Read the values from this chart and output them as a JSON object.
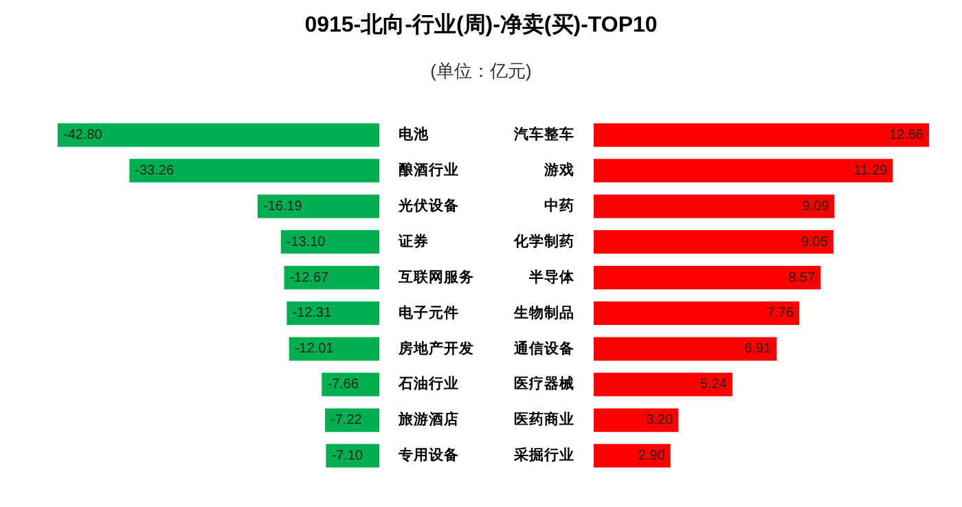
{
  "chart_data": [
    {
      "type": "bar",
      "title": "0915-北向-行业(周)-净卖(买)-TOP10",
      "subtitle": "(单位：亿元)",
      "orientation": "horizontal",
      "categories": [
        "电池",
        "酿酒行业",
        "光伏设备",
        "证券",
        "互联网服务",
        "电子元件",
        "房地产开发",
        "石油行业",
        "旅游酒店",
        "专用设备"
      ],
      "values": [
        -42.8,
        -33.26,
        -16.19,
        -13.1,
        -12.67,
        -12.31,
        -12.01,
        -7.66,
        -7.22,
        -7.1
      ],
      "color": "#00b050",
      "value_labels": [
        "-42.80",
        "-33.26",
        "-16.19",
        "-13.10",
        "-12.67",
        "-12.31",
        "-12.01",
        "-7.66",
        "-7.22",
        "-7.10"
      ],
      "tick_labels": "y"
    },
    {
      "type": "bar",
      "orientation": "horizontal",
      "categories": [
        "汽车整车",
        "游戏",
        "中药",
        "化学制药",
        "半导体",
        "生物制品",
        "通信设备",
        "医疗器械",
        "医药商业",
        "采掘行业"
      ],
      "values": [
        12.66,
        11.29,
        9.09,
        9.05,
        8.57,
        7.76,
        6.91,
        5.24,
        3.2,
        2.9
      ],
      "color": "#ff0000",
      "value_labels": [
        "12.66",
        "11.29",
        "9.09",
        "9.05",
        "8.57",
        "7.76",
        "6.91",
        "5.24",
        "3.20",
        "2.90"
      ],
      "tick_labels": "y"
    }
  ]
}
